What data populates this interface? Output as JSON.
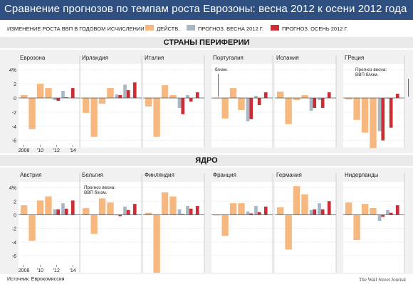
{
  "title": "Сравнение прогнозов по темпам роста Еврозоны: весна 2012 к осени 2012 года",
  "legend": {
    "subtitle": "ИЗМЕНЕНИЕ РОСТА ВВП В ГОДОВОМ ИСЧИСЛЕНИИ",
    "items": [
      {
        "label": "ДЕЙСТВ.",
        "color": "#f6b87e"
      },
      {
        "label": "ПРОГНОЗ. ВЕСНА 2012 Г.",
        "color": "#a9b6c4"
      },
      {
        "label": "ПРОГНОЗ. ОСЕНЬ 2012 Г.",
        "color": "#cc2d35"
      }
    ]
  },
  "sections": {
    "periphery": "СТРАНЫ ПЕРИФЕРИИ",
    "core": "ЯДРО"
  },
  "footer": {
    "source": "Источник: Еврокомиссия",
    "brand": "The Wall Street Journal"
  },
  "chart_data": [
    {
      "type": "bar",
      "group": "periphery",
      "ylim": [
        -7,
        4
      ],
      "yticks": [
        "4%",
        "2",
        "0",
        "-2",
        "-4",
        "-6"
      ],
      "xticks": [
        "2008",
        "'10",
        "'12",
        "'14"
      ],
      "panels": [
        {
          "name": "Еврозона",
          "actual": [
            0.4,
            -4.4,
            2.0,
            1.4
          ],
          "spring": [
            -0.3,
            1.0
          ],
          "autumn": [
            -0.4,
            0.1,
            1.4
          ]
        },
        {
          "name": "Ирландия",
          "actual": [
            -2.1,
            -5.5,
            -0.8,
            1.4
          ],
          "spring": [
            0.5,
            1.9
          ],
          "autumn": [
            0.4,
            1.1,
            2.2
          ]
        },
        {
          "name": "Италия",
          "actual": [
            -1.2,
            -5.5,
            1.8,
            0.4
          ],
          "spring": [
            -1.4,
            0.4
          ],
          "autumn": [
            -2.3,
            -0.5,
            0.8
          ]
        },
        {
          "name": "Португалия",
          "actual": [
            0.0,
            -2.9,
            1.4,
            -1.7
          ],
          "spring": [
            -3.3,
            0.3
          ],
          "autumn": [
            -3.0,
            -1.0,
            0.8
          ],
          "note": "б/изм."
        },
        {
          "name": "Испания",
          "actual": [
            0.9,
            -3.7,
            -0.3,
            0.4
          ],
          "spring": [
            -1.8,
            -0.3
          ],
          "autumn": [
            -1.4,
            -1.4,
            0.8
          ]
        },
        {
          "name": "ГРеция",
          "actual": [
            -0.2,
            -3.1,
            -4.9,
            -7.1
          ],
          "spring": [
            -4.7,
            0.0
          ],
          "autumn": [
            -6.0,
            -4.2,
            0.6
          ],
          "note": "Прогноз весна:\nВВП б/изм."
        }
      ]
    },
    {
      "type": "bar",
      "group": "core",
      "ylim": [
        -8.5,
        4
      ],
      "yticks": [
        "4%",
        "2",
        "0",
        "-2",
        "-4",
        "-6"
      ],
      "xticks": [
        "2008",
        "'10",
        "'12",
        "'14"
      ],
      "panels": [
        {
          "name": "Австрия",
          "actual": [
            1.4,
            -3.8,
            2.1,
            2.7
          ],
          "spring": [
            0.8,
            1.7
          ],
          "autumn": [
            0.8,
            0.9,
            2.1
          ]
        },
        {
          "name": "Бельгия",
          "actual": [
            1.0,
            -2.8,
            2.4,
            1.8
          ],
          "spring": [
            0.0,
            1.2
          ],
          "autumn": [
            -0.2,
            0.7,
            1.6
          ],
          "note": "Прогноз весна:\nВВП б/изм."
        },
        {
          "name": "Финляндия",
          "actual": [
            0.3,
            -8.5,
            3.3,
            2.7
          ],
          "spring": [
            0.8,
            1.3
          ],
          "autumn": [
            0.1,
            0.9,
            1.3
          ]
        },
        {
          "name": "Франция",
          "actual": [
            -0.1,
            -3.1,
            1.7,
            1.7
          ],
          "spring": [
            0.5,
            1.3
          ],
          "autumn": [
            0.2,
            0.4,
            1.2
          ]
        },
        {
          "name": "Германия",
          "actual": [
            1.1,
            -5.1,
            4.2,
            3.0
          ],
          "spring": [
            0.7,
            1.7
          ],
          "autumn": [
            0.8,
            0.8,
            2.0
          ]
        },
        {
          "name": "Нидерланды",
          "actual": [
            1.8,
            -3.7,
            1.6,
            1.0
          ],
          "spring": [
            -0.9,
            0.7
          ],
          "autumn": [
            -0.3,
            0.3,
            1.4
          ]
        }
      ]
    }
  ]
}
